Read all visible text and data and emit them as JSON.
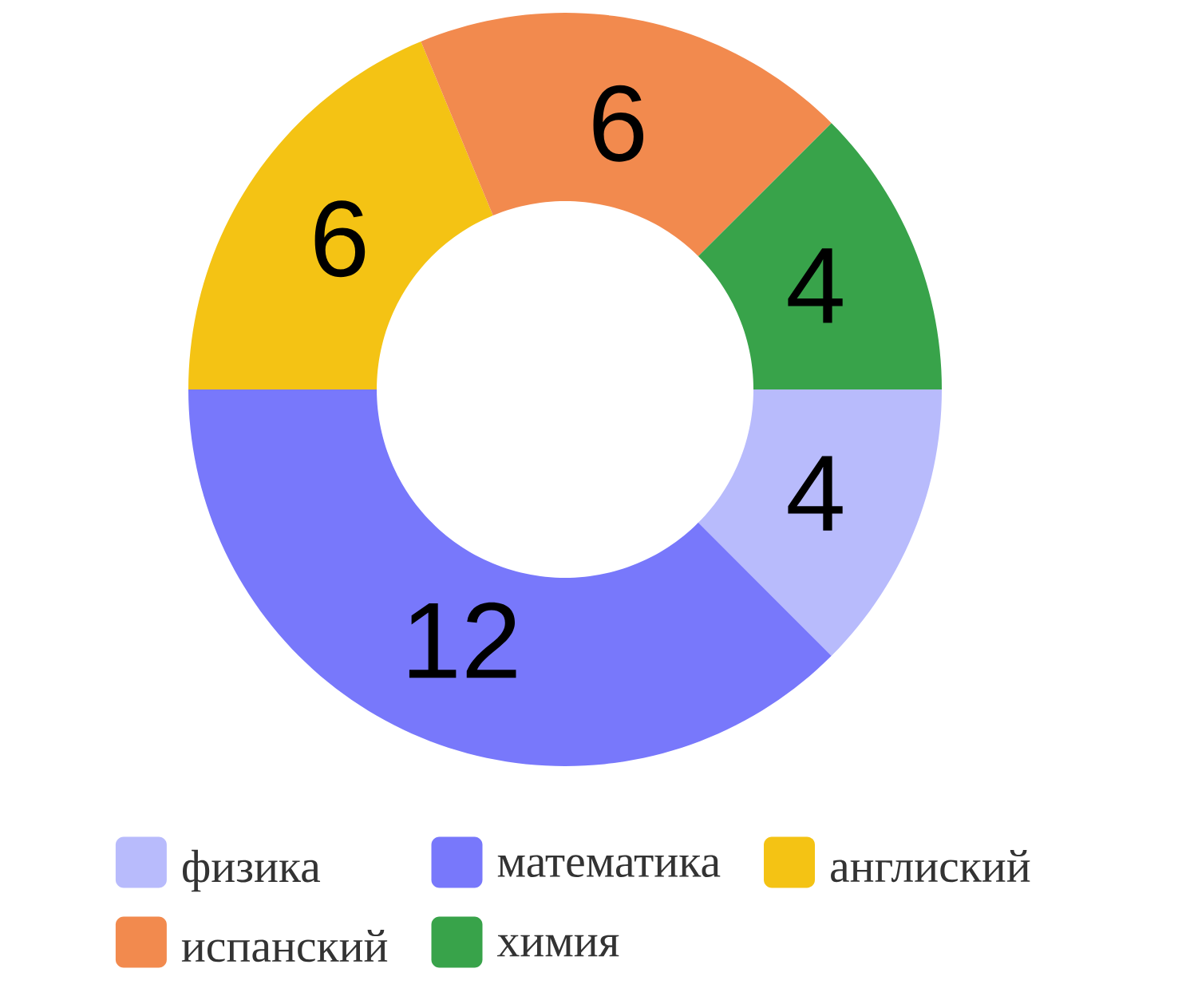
{
  "chart_data": {
    "type": "donut",
    "categories": [
      "физика",
      "математика",
      "англиский",
      "испанский",
      "химия"
    ],
    "values": [
      4,
      12,
      6,
      6,
      4
    ],
    "colors": [
      "#b8bbfc",
      "#7878fb",
      "#f4c314",
      "#f28a4e",
      "#38a34a"
    ],
    "data_labels": true,
    "legend": "bottom"
  }
}
